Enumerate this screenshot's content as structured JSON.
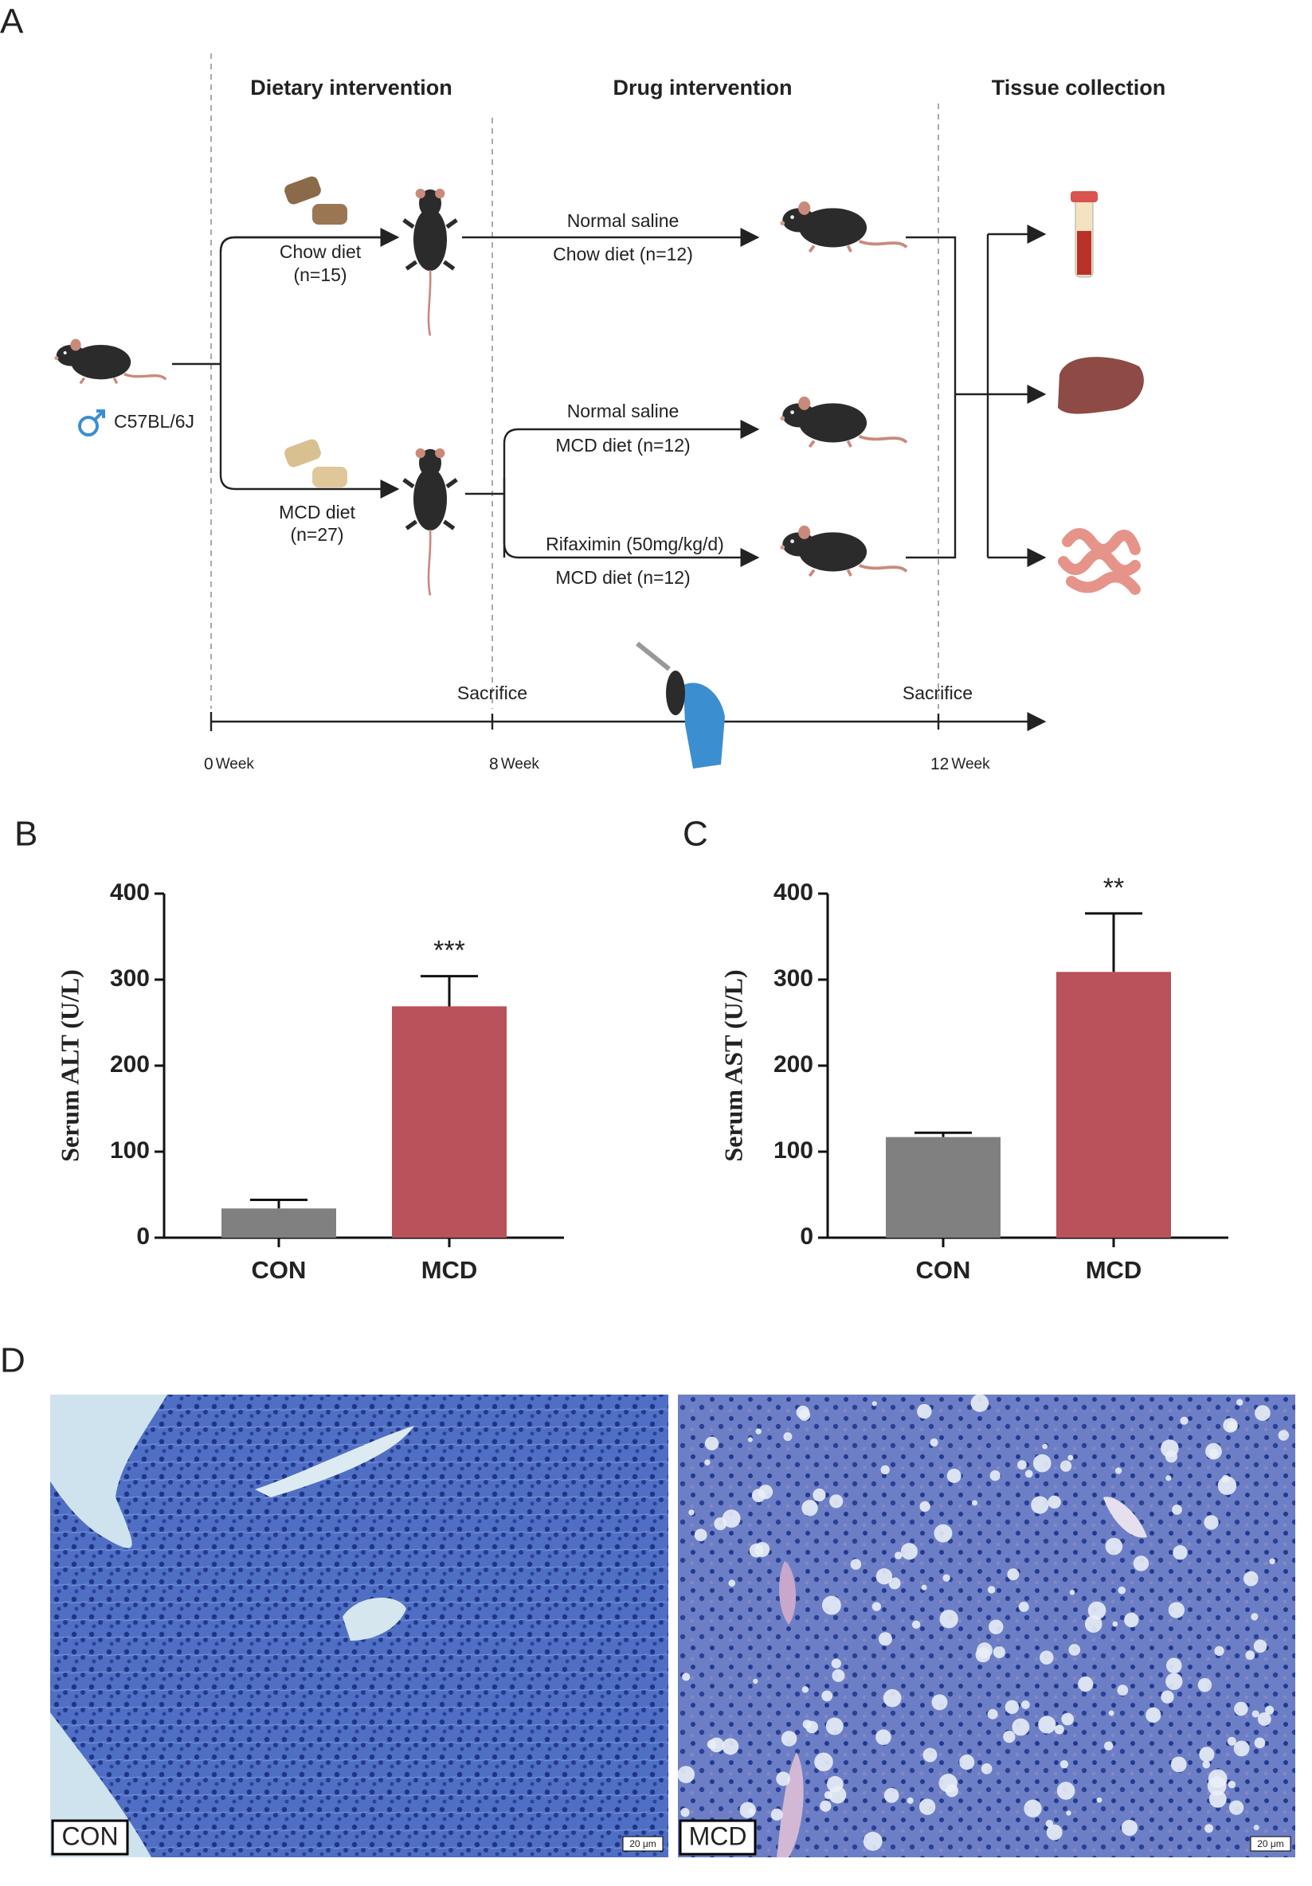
{
  "panel_a": {
    "label": "A",
    "headers": [
      "Dietary intervention",
      "Drug intervention",
      "Tissue collection"
    ],
    "strain": "C57BL/6J",
    "chow_group": [
      "Chow diet",
      "(n=15)"
    ],
    "mcd_group": [
      "MCD diet",
      "(n=27)"
    ],
    "arms": [
      [
        "Normal saline",
        "Chow diet (n=12)"
      ],
      [
        "Normal saline",
        "MCD diet  (n=12)"
      ],
      [
        "Rifaximin (50mg/kg/d)",
        "MCD diet  (n=12)"
      ]
    ],
    "timeline": {
      "events": [
        "Sacrifice",
        "Sacrifice"
      ],
      "ticks": [
        "0",
        "8",
        "12"
      ],
      "unit": "Week"
    }
  },
  "chart_data": [
    {
      "type": "bar",
      "label": "B",
      "ylabel": "Serum ALT (U/L)",
      "categories": [
        "CON",
        "MCD"
      ],
      "values": [
        34,
        269
      ],
      "errors": [
        10,
        35
      ],
      "colors": [
        "#808080",
        "#b9525b"
      ],
      "annotation": "***",
      "ylim": [
        0,
        400
      ],
      "yticks": [
        0,
        100,
        200,
        300,
        400
      ]
    },
    {
      "type": "bar",
      "label": "C",
      "ylabel": "Serum AST (U/L)",
      "categories": [
        "CON",
        "MCD"
      ],
      "values": [
        117,
        309
      ],
      "errors": [
        5,
        68
      ],
      "colors": [
        "#808080",
        "#b9525b"
      ],
      "annotation": "**",
      "ylim": [
        0,
        400
      ],
      "yticks": [
        0,
        100,
        200,
        300,
        400
      ]
    }
  ],
  "panel_d": {
    "label": "D",
    "images": [
      {
        "label": "CON",
        "scale": "20 μm"
      },
      {
        "label": "MCD",
        "scale": "20 μm"
      }
    ]
  }
}
